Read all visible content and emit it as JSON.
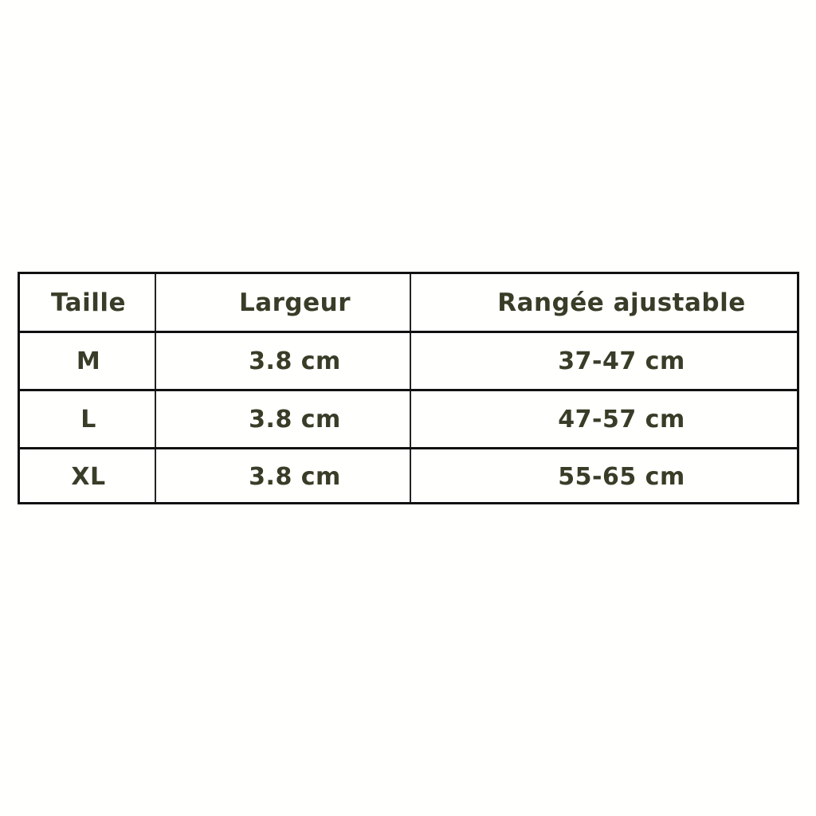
{
  "table": {
    "headers": [
      "Taille",
      "Largeur",
      "Rangée ajustable"
    ],
    "rows": [
      [
        "M",
        "3.8 cm",
        "37-47 cm"
      ],
      [
        "L",
        "3.8 cm",
        "47-57 cm"
      ],
      [
        "XL",
        "3.8 cm",
        "55-65 cm"
      ]
    ]
  },
  "colors": {
    "text": "#383d28",
    "border": "#111111"
  }
}
